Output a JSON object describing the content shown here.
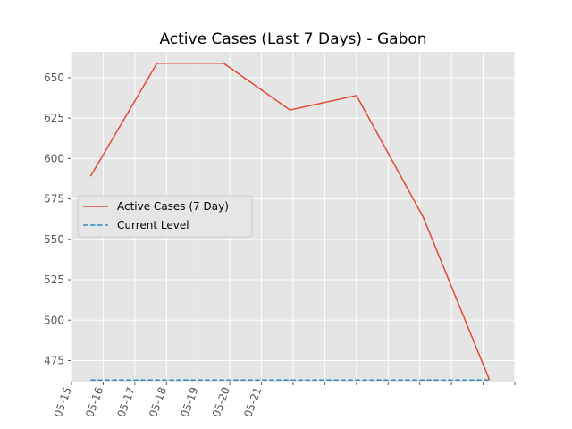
{
  "chart_data": {
    "type": "line",
    "title": "Active Cases (Last 7 Days) - Gabon",
    "xlabel": "",
    "ylabel": "",
    "grid": true,
    "legend_position": "center-left",
    "x_tick_labels": [
      "05-15",
      "05-16",
      "05-17",
      "05-18",
      "05-19",
      "05-20",
      "05-21"
    ],
    "y_ticks": [
      475,
      500,
      525,
      550,
      575,
      600,
      625,
      650
    ],
    "ylim": [
      462,
      666
    ],
    "series": [
      {
        "name": "Active Cases (7 Day)",
        "style": "solid",
        "color": "#E24A33",
        "x": [
          0.6,
          2.7,
          4.8,
          6.9,
          9.0,
          11.1,
          13.2
        ],
        "values": [
          589,
          659,
          659,
          630,
          639,
          564,
          463
        ]
      },
      {
        "name": "Current Level",
        "style": "dashed",
        "color": "#348ABD",
        "x": [
          0.6,
          13.2
        ],
        "values": [
          463,
          463
        ]
      }
    ]
  }
}
